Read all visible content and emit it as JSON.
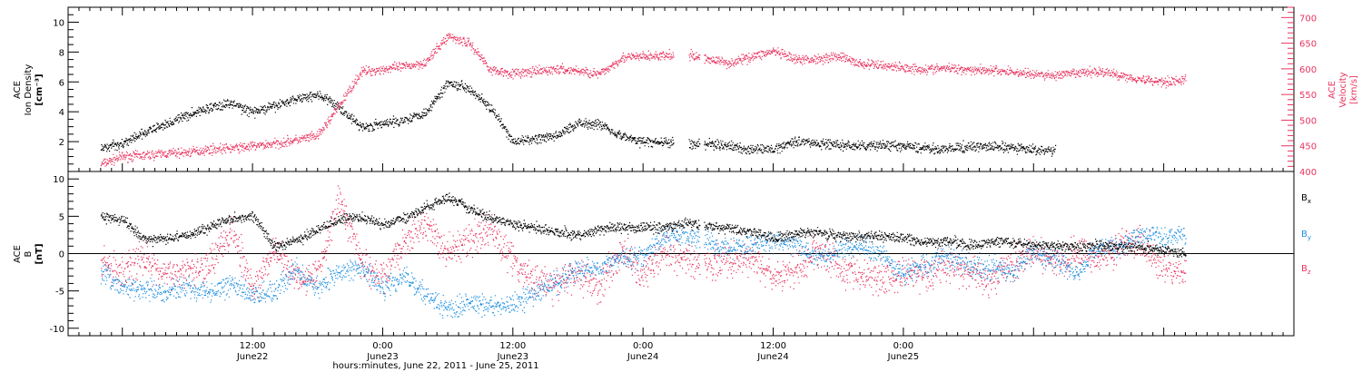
{
  "chart_data": [
    {
      "type": "scatter",
      "panel": "top",
      "ylabel_left": [
        "ACE",
        "Ion Density",
        "[cm⁻³]"
      ],
      "ylabel_right": [
        "ACE",
        "Velocity",
        "[km/s]"
      ],
      "ylim_left": [
        0,
        11
      ],
      "ylim_right": [
        400,
        720
      ],
      "yticks_left": [
        "2",
        "4",
        "6",
        "8",
        "10"
      ],
      "yticks_right": [
        "400",
        "450",
        "500",
        "550",
        "600",
        "650",
        "700"
      ],
      "grid": false,
      "series": [
        {
          "axis": "left",
          "color": "#000000",
          "points": [
            [
              -2,
              1.6
            ],
            [
              0,
              1.9
            ],
            [
              2,
              2.6
            ],
            [
              4,
              3.2
            ],
            [
              6,
              3.8
            ],
            [
              8,
              4.3
            ],
            [
              10,
              4.6
            ],
            [
              12,
              4.0
            ],
            [
              14,
              4.4
            ],
            [
              16,
              4.9
            ],
            [
              18,
              5.2
            ],
            [
              20,
              4.3
            ],
            [
              22,
              3.0
            ],
            [
              24,
              3.2
            ],
            [
              26,
              3.5
            ],
            [
              28,
              4.0
            ],
            [
              30,
              6.0
            ],
            [
              32,
              5.6
            ],
            [
              34,
              4.2
            ],
            [
              36,
              2.0
            ],
            [
              38,
              2.2
            ],
            [
              40,
              2.4
            ],
            [
              42,
              3.3
            ],
            [
              44,
              3.2
            ],
            [
              46,
              2.4
            ],
            [
              48,
              2.0
            ],
            [
              50,
              2.0
            ],
            [
              52,
              1.8
            ],
            [
              54,
              1.9
            ],
            [
              56,
              1.7
            ],
            [
              58,
              1.5
            ],
            [
              60,
              1.5
            ],
            [
              62,
              2.1
            ],
            [
              64,
              1.9
            ],
            [
              66,
              1.8
            ],
            [
              68,
              1.7
            ],
            [
              70,
              1.8
            ],
            [
              72,
              1.7
            ],
            [
              74,
              1.6
            ],
            [
              76,
              1.5
            ],
            [
              78,
              1.7
            ],
            [
              80,
              1.7
            ],
            [
              82,
              1.6
            ],
            [
              84,
              1.5
            ],
            [
              86,
              1.4
            ]
          ]
        },
        {
          "axis": "right",
          "color": "#e8345f",
          "points": [
            [
              -2,
              415
            ],
            [
              0,
              430
            ],
            [
              2,
              432
            ],
            [
              4,
              436
            ],
            [
              6,
              438
            ],
            [
              8,
              444
            ],
            [
              10,
              446
            ],
            [
              12,
              450
            ],
            [
              14,
              455
            ],
            [
              16,
              462
            ],
            [
              18,
              470
            ],
            [
              20,
              530
            ],
            [
              22,
              595
            ],
            [
              24,
              600
            ],
            [
              26,
              605
            ],
            [
              28,
              614
            ],
            [
              30,
              665
            ],
            [
              32,
              650
            ],
            [
              34,
              598
            ],
            [
              36,
              592
            ],
            [
              38,
              595
            ],
            [
              40,
              600
            ],
            [
              42,
              597
            ],
            [
              44,
              590
            ],
            [
              46,
              622
            ],
            [
              48,
              625
            ],
            [
              50,
              626
            ],
            [
              52,
              628
            ],
            [
              56,
              612
            ],
            [
              58,
              625
            ],
            [
              60,
              635
            ],
            [
              62,
              618
            ],
            [
              64,
              620
            ],
            [
              66,
              626
            ],
            [
              68,
              610
            ],
            [
              70,
              608
            ],
            [
              72,
              603
            ],
            [
              74,
              600
            ],
            [
              76,
              602
            ],
            [
              78,
              600
            ],
            [
              80,
              598
            ],
            [
              82,
              595
            ],
            [
              84,
              590
            ],
            [
              86,
              588
            ],
            [
              88,
              592
            ],
            [
              90,
              596
            ],
            [
              92,
              588
            ],
            [
              94,
              580
            ],
            [
              96,
              576
            ],
            [
              98,
              579
            ]
          ]
        }
      ]
    },
    {
      "type": "scatter",
      "panel": "bottom",
      "ylabel_left": [
        "ACE",
        "B",
        "[nT]"
      ],
      "ylim": [
        -11,
        11
      ],
      "yticks": [
        "-10",
        "-5",
        "0",
        "5",
        "10"
      ],
      "zero_line": true,
      "grid": false,
      "legend_position": "right",
      "series": [
        {
          "name": "B",
          "sub": "x",
          "color": "#000000",
          "points": [
            [
              -2,
              5.0
            ],
            [
              0,
              4.6
            ],
            [
              2,
              2.0
            ],
            [
              4,
              2.0
            ],
            [
              6,
              2.6
            ],
            [
              8,
              3.5
            ],
            [
              10,
              4.8
            ],
            [
              12,
              5.1
            ],
            [
              14,
              1.0
            ],
            [
              16,
              1.8
            ],
            [
              18,
              3.2
            ],
            [
              20,
              4.6
            ],
            [
              22,
              5.0
            ],
            [
              24,
              3.9
            ],
            [
              26,
              4.8
            ],
            [
              28,
              6.4
            ],
            [
              30,
              7.5
            ],
            [
              32,
              6.0
            ],
            [
              34,
              4.8
            ],
            [
              36,
              4.0
            ],
            [
              38,
              3.6
            ],
            [
              40,
              3.0
            ],
            [
              42,
              2.5
            ],
            [
              44,
              3.3
            ],
            [
              46,
              3.6
            ],
            [
              48,
              3.5
            ],
            [
              50,
              3.6
            ],
            [
              52,
              4.1
            ],
            [
              56,
              3.3
            ],
            [
              58,
              3.0
            ],
            [
              60,
              2.1
            ],
            [
              62,
              2.6
            ],
            [
              64,
              3.0
            ],
            [
              66,
              2.5
            ],
            [
              68,
              2.3
            ],
            [
              70,
              2.4
            ],
            [
              72,
              2.1
            ],
            [
              74,
              1.6
            ],
            [
              76,
              1.8
            ],
            [
              78,
              1.2
            ],
            [
              80,
              1.6
            ],
            [
              82,
              1.5
            ],
            [
              84,
              1.2
            ],
            [
              86,
              1.1
            ],
            [
              88,
              1.0
            ],
            [
              90,
              1.2
            ],
            [
              92,
              1.0
            ],
            [
              94,
              0.8
            ],
            [
              96,
              0.6
            ],
            [
              98,
              0.0
            ]
          ]
        },
        {
          "name": "B",
          "sub": "y",
          "color": "#1f8fe0",
          "points": [
            [
              -2,
              -2.4
            ],
            [
              0,
              -4.6
            ],
            [
              2,
              -4.8
            ],
            [
              4,
              -5.2
            ],
            [
              6,
              -4.3
            ],
            [
              8,
              -5.4
            ],
            [
              10,
              -3.7
            ],
            [
              12,
              -5.6
            ],
            [
              14,
              -4.9
            ],
            [
              16,
              -2.1
            ],
            [
              18,
              -4.6
            ],
            [
              20,
              -2.2
            ],
            [
              22,
              -1.9
            ],
            [
              24,
              -4.5
            ],
            [
              26,
              -2.8
            ],
            [
              28,
              -5.6
            ],
            [
              30,
              -7.6
            ],
            [
              32,
              -6.5
            ],
            [
              34,
              -7.0
            ],
            [
              36,
              -6.8
            ],
            [
              38,
              -5.4
            ],
            [
              40,
              -3.7
            ],
            [
              42,
              -2.1
            ],
            [
              44,
              -1.6
            ],
            [
              46,
              -0.6
            ],
            [
              48,
              -0.3
            ],
            [
              50,
              2.1
            ],
            [
              52,
              2.6
            ],
            [
              56,
              0.8
            ],
            [
              58,
              1.2
            ],
            [
              60,
              1.6
            ],
            [
              62,
              1.5
            ],
            [
              64,
              -0.6
            ],
            [
              66,
              0.4
            ],
            [
              68,
              1.0
            ],
            [
              70,
              -0.3
            ],
            [
              72,
              -2.7
            ],
            [
              74,
              -1.3
            ],
            [
              76,
              -0.3
            ],
            [
              78,
              -1.6
            ],
            [
              80,
              -1.6
            ],
            [
              82,
              -2.3
            ],
            [
              84,
              0.2
            ],
            [
              86,
              -0.5
            ],
            [
              88,
              -2.6
            ],
            [
              90,
              1.1
            ],
            [
              92,
              1.1
            ],
            [
              94,
              2.5
            ],
            [
              96,
              2.2
            ],
            [
              98,
              3.0
            ]
          ]
        },
        {
          "name": "B",
          "sub": "z",
          "color": "#e8345f",
          "points": [
            [
              -2,
              -1.4
            ],
            [
              0,
              -2.5
            ],
            [
              2,
              -0.4
            ],
            [
              4,
              -3.1
            ],
            [
              6,
              -2.0
            ],
            [
              8,
              -1.2
            ],
            [
              10,
              3.4
            ],
            [
              12,
              -4.9
            ],
            [
              14,
              0.5
            ],
            [
              16,
              -3.2
            ],
            [
              18,
              -2.5
            ],
            [
              20,
              7.7
            ],
            [
              22,
              -1.3
            ],
            [
              24,
              -3.4
            ],
            [
              26,
              1.9
            ],
            [
              28,
              3.8
            ],
            [
              30,
              0.1
            ],
            [
              32,
              1.8
            ],
            [
              34,
              3.6
            ],
            [
              36,
              -1.2
            ],
            [
              38,
              -3.4
            ],
            [
              40,
              -4.1
            ],
            [
              42,
              -2.5
            ],
            [
              44,
              -4.6
            ],
            [
              46,
              0.7
            ],
            [
              48,
              -2.7
            ],
            [
              50,
              1.1
            ],
            [
              52,
              -0.9
            ],
            [
              56,
              -1.2
            ],
            [
              58,
              -0.3
            ],
            [
              60,
              -3.4
            ],
            [
              62,
              -2.4
            ],
            [
              64,
              0.6
            ],
            [
              66,
              -1.6
            ],
            [
              68,
              -2.8
            ],
            [
              70,
              -3.2
            ],
            [
              72,
              -2.7
            ],
            [
              74,
              -2.6
            ],
            [
              76,
              -1.6
            ],
            [
              78,
              -2.3
            ],
            [
              80,
              -3.6
            ],
            [
              82,
              -1.3
            ],
            [
              84,
              0.3
            ],
            [
              86,
              -1.5
            ],
            [
              88,
              0.4
            ],
            [
              90,
              -0.7
            ],
            [
              92,
              1.3
            ],
            [
              94,
              1.5
            ],
            [
              96,
              -1.8
            ],
            [
              98,
              -2.6
            ]
          ]
        }
      ]
    }
  ],
  "xaxis": {
    "range_hours": [
      -5,
      108
    ],
    "title": "hours:minutes, June 22, 2011 - June 25, 2011",
    "ticks": [
      {
        "hours": 12,
        "time": "12:00",
        "day": "June22"
      },
      {
        "hours": 24,
        "time": "0:00",
        "day": "June23"
      },
      {
        "hours": 36,
        "time": "12:00",
        "day": "June23"
      },
      {
        "hours": 48,
        "time": "0:00",
        "day": "June24"
      },
      {
        "hours": 60,
        "time": "12:00",
        "day": "June24"
      },
      {
        "hours": 72,
        "time": "0:00",
        "day": "June25"
      }
    ]
  }
}
